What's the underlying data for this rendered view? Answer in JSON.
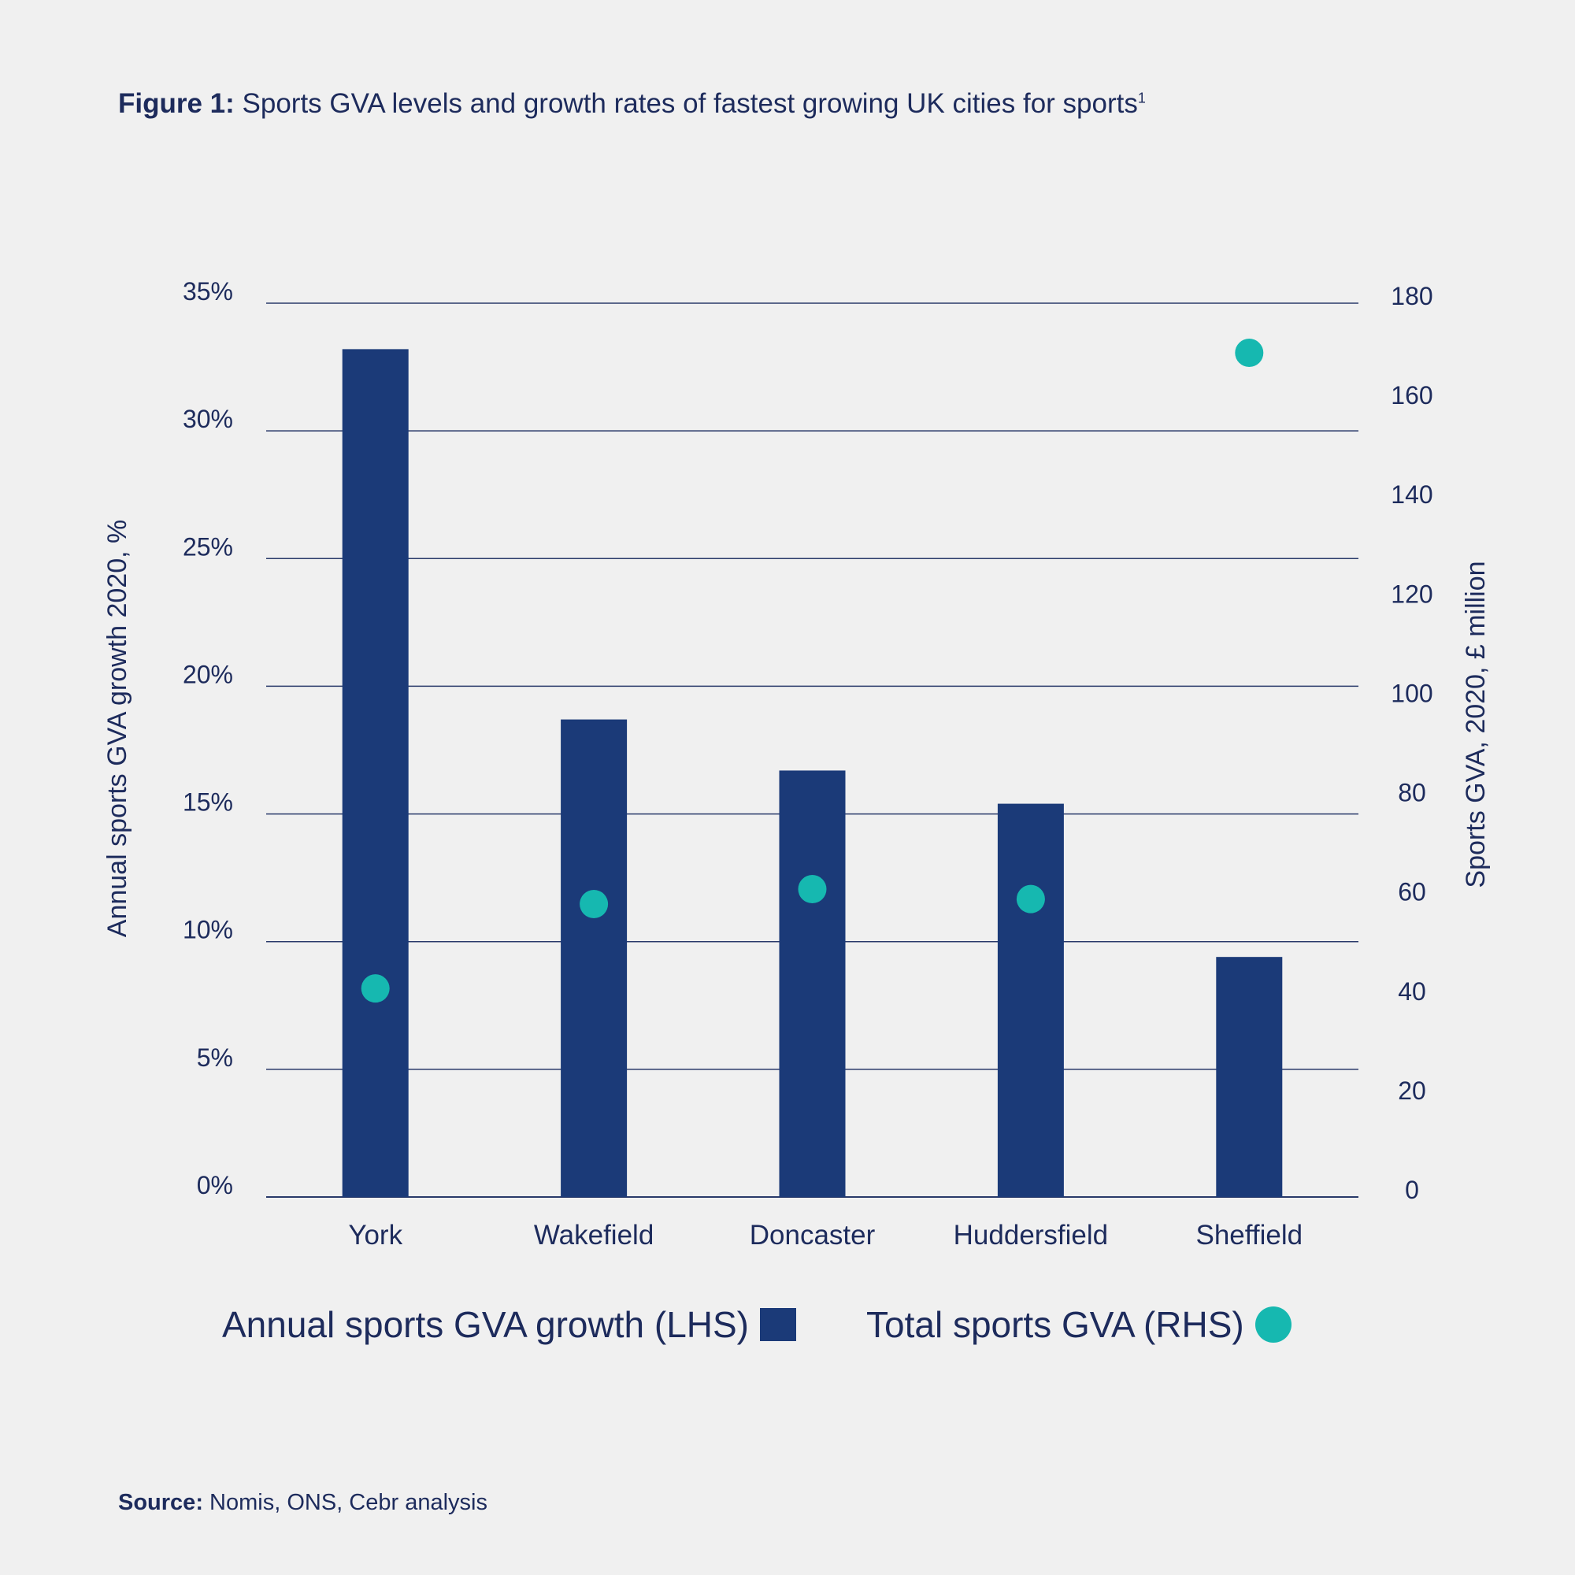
{
  "title": {
    "prefix": "Figure 1:",
    "text": " Sports GVA levels and growth rates of fastest growing UK cities for sports",
    "footnote_mark": "1"
  },
  "source": {
    "prefix": "Source:",
    "text": " Nomis, ONS, Cebr analysis"
  },
  "legend": {
    "bar_label": "Annual sports GVA growth (LHS)",
    "dot_label": "Total sports GVA (RHS)"
  },
  "colors": {
    "bar": "#1b3a78",
    "dot": "#16b8b0",
    "grid": "#2a3a6a",
    "text": "#1d2b5c"
  },
  "chart_data": {
    "type": "bar",
    "categories": [
      "York",
      "Wakefield",
      "Doncaster",
      "Huddersfield",
      "Sheffield"
    ],
    "series": [
      {
        "name": "Annual sports GVA growth (LHS)",
        "axis": "left",
        "mark": "bar",
        "values": [
          33.2,
          18.7,
          16.7,
          15.4,
          9.4
        ]
      },
      {
        "name": "Total sports GVA (RHS)",
        "axis": "right",
        "mark": "dot",
        "values": [
          42,
          59,
          62,
          60,
          170
        ]
      }
    ],
    "y_left": {
      "label": "Annual sports GVA growth 2020, %",
      "range": [
        0,
        35
      ],
      "ticks": [
        "0%",
        "5%",
        "10%",
        "15%",
        "20%",
        "25%",
        "30%",
        "35%"
      ]
    },
    "y_right": {
      "label": "Sports GVA, 2020, £ million",
      "range": [
        0,
        180
      ],
      "ticks": [
        "0",
        "20",
        "40",
        "60",
        "80",
        "100",
        "120",
        "140",
        "160",
        "180"
      ]
    },
    "grid": true,
    "legend_position": "bottom"
  }
}
